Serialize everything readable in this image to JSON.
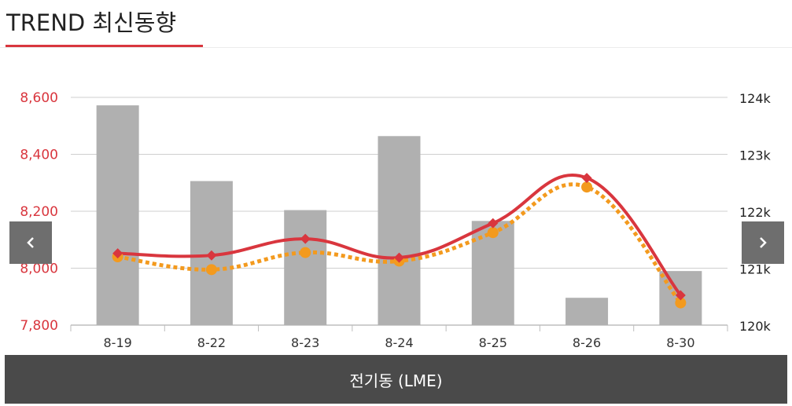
{
  "header": {
    "title": "TREND 최신동향"
  },
  "nav": {
    "prev_icon": "chevron-left-icon",
    "next_icon": "chevron-right-icon"
  },
  "footer": {
    "label": "전기동 (LME)"
  },
  "colors": {
    "accent": "#d9363e",
    "bar": "#b0b0b0",
    "dotted_line": "#f39a1e",
    "nav_bg": "#6e6e6e",
    "footer_bg": "#4a4a4a"
  },
  "chart_data": {
    "type": "bar+line",
    "categories": [
      "8-19",
      "8-22",
      "8-23",
      "8-24",
      "8-25",
      "8-26",
      "8-30"
    ],
    "y_left": {
      "ticks": [
        "7,800",
        "8,000",
        "8,200",
        "8,400",
        "8,600"
      ],
      "range": [
        7800,
        8600
      ]
    },
    "y_right": {
      "ticks": [
        "120k",
        "121k",
        "122k",
        "123k",
        "124k"
      ],
      "range": [
        120000,
        124000
      ]
    },
    "grid": true,
    "bars": {
      "axis": "right",
      "values": [
        123860,
        122530,
        122020,
        123320,
        121830,
        120480,
        120950
      ]
    },
    "series": [
      {
        "style": "solid",
        "color": "#d9363e",
        "marker": "diamond",
        "axis": "left",
        "values": [
          8052,
          8045,
          8103,
          8037,
          8158,
          8317,
          7905
        ]
      },
      {
        "style": "dotted",
        "color": "#f39a1e",
        "marker": "circle",
        "axis": "left",
        "values": [
          8040,
          7995,
          8055,
          8025,
          8125,
          8285,
          7878
        ]
      }
    ]
  }
}
